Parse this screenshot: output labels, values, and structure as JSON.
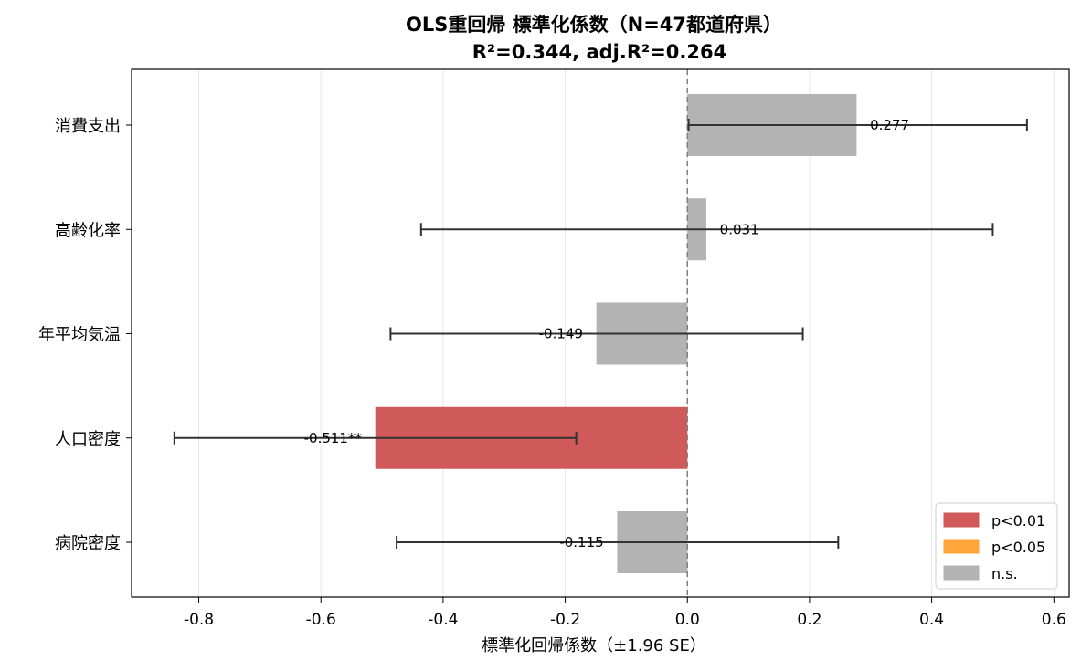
{
  "chart_data": {
    "type": "bar",
    "orientation": "horizontal",
    "title": "OLS重回帰 標準化係数（N=47都道府県）",
    "subtitle": "R²=0.344, adj.R²=0.264",
    "xlabel": "標準化回帰係数（±1.96 SE）",
    "ylabel": "",
    "xlim": [
      -0.91,
      0.625
    ],
    "xticks": [
      -0.8,
      -0.6,
      -0.4,
      -0.2,
      0.0,
      0.2,
      0.4,
      0.6
    ],
    "xtick_labels": [
      "-0.8",
      "-0.6",
      "-0.4",
      "-0.2",
      "0.0",
      "0.2",
      "0.4",
      "0.6"
    ],
    "grid": "vertical",
    "reference_line": 0.0,
    "legend_position": "lower-right",
    "categories": [
      "消費支出",
      "高齢化率",
      "年平均気温",
      "人口密度",
      "病院密度"
    ],
    "values": [
      0.277,
      0.031,
      -0.149,
      -0.511,
      -0.115
    ],
    "ci_low": [
      0.002,
      -0.436,
      -0.486,
      -0.84,
      -0.476
    ],
    "ci_high": [
      0.556,
      0.5,
      0.189,
      -0.182,
      0.247
    ],
    "significance": [
      "n.s.",
      "n.s.",
      "n.s.",
      "p<0.01",
      "n.s."
    ],
    "value_labels": [
      "0.277",
      "0.031",
      "-0.149",
      "-0.511**",
      "-0.115"
    ],
    "legend": [
      {
        "label": "p<0.01",
        "color": "#d05a5a"
      },
      {
        "label": "p<0.05",
        "color": "#ffa53a"
      },
      {
        "label": "n.s.",
        "color": "#b3b3b3"
      }
    ],
    "colors": {
      "p<0.01": "#d05a5a",
      "p<0.05": "#ffa53a",
      "n.s.": "#b3b3b3"
    }
  }
}
